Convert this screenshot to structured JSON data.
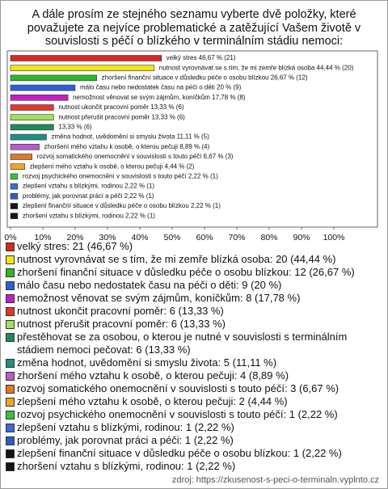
{
  "chart_data": {
    "type": "hbar",
    "title": "A dále prosím ze stejného seznamu vyberte dvě položky, které považujete za nejvíce problematické a zatěžující Vašem životě v souvislosti s péčí o blízkého v terminálním stádiu nemoci:",
    "values": [
      46.67,
      44.44,
      26.67,
      20,
      17.78,
      13.33,
      13.33,
      13.33,
      11.11,
      8.89,
      6.67,
      4.44,
      2.22,
      2.22,
      2.22,
      2.22,
      2.22
    ],
    "value_labels": [
      "velký stres 46,67 % (21)",
      "nutnost vyrovnávat se s tím, že mi zemře blízká osoba 44,44 % (20)",
      "zhoršení finanční situace v důsledku péče o osobu blízkou 26,67 % (12)",
      "málo času nebo nedostatek času na péči o děti 20 % (9)",
      "nemožnost věnovat se svým zájmům, koníčkům 17,78 % (8)",
      "nutnost ukončit pracovní poměr 13,33 % (6)",
      "nutnost přerušit pracovní poměr 13,33 % (6)",
      "13,33 % (6)",
      "změna hodnot, uvědomění si smyslu života 11,11 % (5)",
      "zhoršení mého vztahu k osobě, o kterou pečuji 8,89 % (4)",
      "rozvoj somatického onemocnění v souvislosti s touto péčí 6,67 % (3)",
      "zlepšení mého vztahu k osobě, o kterou pečuji 4,44 % (2)",
      "rozvoj psychického onemocnění v souvislosti s touto péčí 2,22 % (1)",
      "zlepšení vztahu s blízkými, rodinou 2,22 % (1)",
      "problémy, jak porovnat práci a péči 2,22 % (1)",
      "zlepšení finanční situace v důsledku péče o osobu blízkou 2,22 % (1)",
      "zhoršení vztahu s blízkými, rodinou 2,22 % (1)"
    ],
    "legend": [
      "velký stres: 21 (46,67 %)",
      "nutnost vyrovnávat se s tím, že mi zemře blízká osoba: 20 (44,44 %)",
      "zhoršení finanční situace v důsledku péče o osobu blízkou: 12 (26,67 %)",
      "málo času nebo nedostatek času na péči o děti: 9 (20 %)",
      "nemožnost věnovat se svým zájmům, koníčkům: 8 (17,78 %)",
      "nutnost ukončit pracovní poměr: 6 (13,33 %)",
      "nutnost přerušit pracovní poměr: 6 (13,33 %)",
      "přestěhovat se za osobou, o kterou je nutné v souvislosti s terminálním stádiem nemoci pečovat: 6 (13,33 %)",
      "změna hodnot, uvědomění si smyslu života: 5 (11,11 %)",
      "zhoršení mého vztahu k osobě, o kterou pečuji: 4 (8,89 %)",
      "rozvoj somatického onemocnění v souvislosti s touto péčí: 3 (6,67 %)",
      "zlepšení mého vztahu k osobě, o kterou pečuji: 2 (4,44 %)",
      "rozvoj psychického onemocnění v souvislosti s touto péčí: 1 (2,22 %)",
      "zlepšení vztahu s blízkými, rodinou: 1 (2,22 %)",
      "problémy, jak porovnat práci a péči: 1 (2,22 %)",
      "zlepšení finanční situace v důsledku péče o osobu blízkou: 1 (2,22 %)",
      "zhoršení vztahu s blízkými, rodinou: 1 (2,22 %)"
    ],
    "colors": [
      "#d8281f",
      "#f3e418",
      "#2fb52a",
      "#2b60d6",
      "#c21fc2",
      "#e0382c",
      "#9fe05c",
      "#1f8a58",
      "#1f8f80",
      "#b45ec6",
      "#e0782a",
      "#f0a424",
      "#3cc03c",
      "#3a6ad8",
      "#2f5cc4",
      "#151515",
      "#151515"
    ],
    "xlim": [
      0,
      100
    ],
    "xticks": [
      {
        "value": 0,
        "label": "0%"
      },
      {
        "value": 10,
        "label": "10%"
      },
      {
        "value": 20,
        "label": "20%"
      },
      {
        "value": 30,
        "label": "30%"
      },
      {
        "value": 40,
        "label": "40%"
      },
      {
        "value": 50,
        "label": "50%"
      },
      {
        "value": 60,
        "label": "60%"
      },
      {
        "value": 70,
        "label": "70%"
      },
      {
        "value": 80,
        "label": "80%"
      },
      {
        "value": 90,
        "label": "90%"
      },
      {
        "value": 100,
        "label": "100%"
      }
    ],
    "source": "zdroj: https://zkusenost-s-peci-o-terminaln.vyplnto.cz"
  }
}
